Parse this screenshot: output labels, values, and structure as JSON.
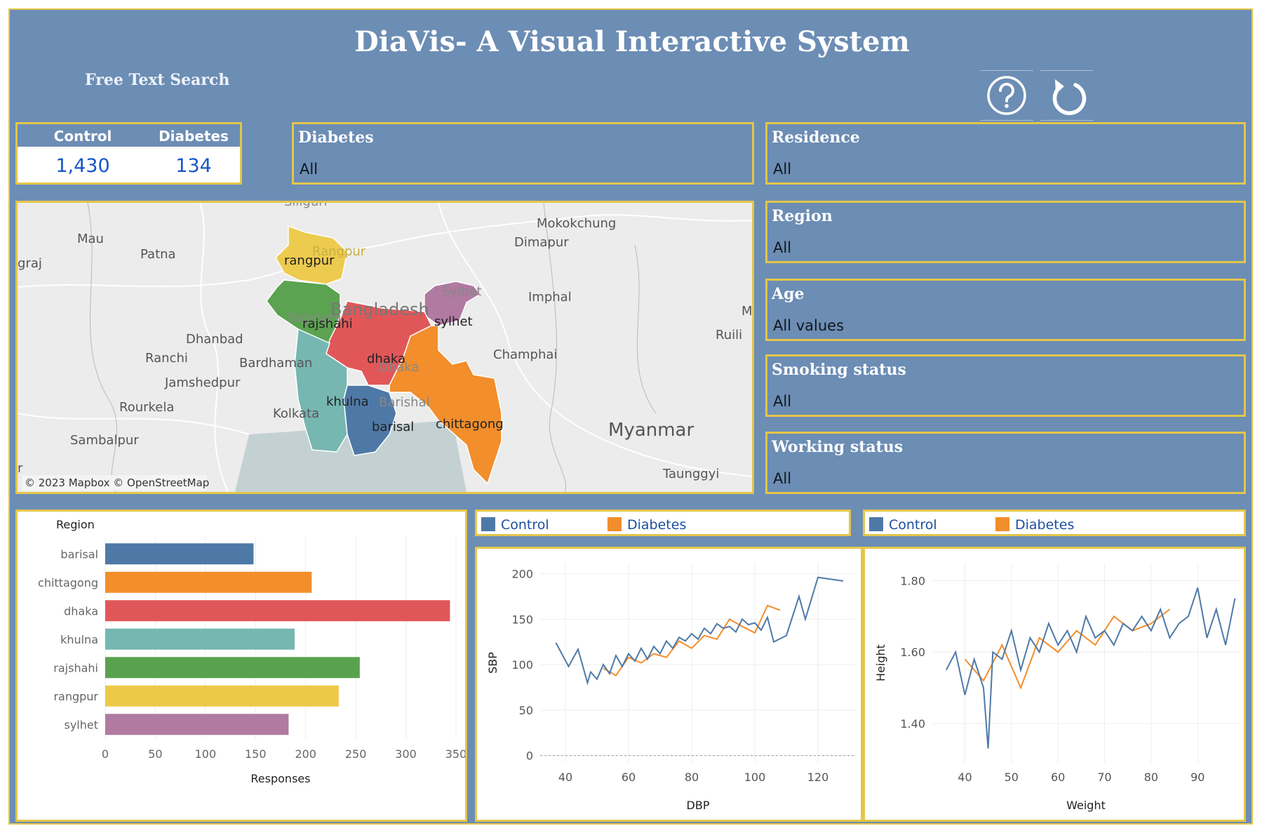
{
  "header": {
    "title": "DiaVis- A Visual Interactive System",
    "search_label": "Free Text Search",
    "help_icon": "question-circle-icon",
    "reset_icon": "revert-arrow-icon"
  },
  "counts": {
    "control_label": "Control",
    "diabetes_label": "Diabetes",
    "control_value": "1,430",
    "diabetes_value": "134"
  },
  "filters": {
    "diabetes": {
      "title": "Diabetes",
      "value": "All"
    },
    "residence": {
      "title": "Residence",
      "value": "All"
    },
    "region": {
      "title": "Region",
      "value": "All"
    },
    "age": {
      "title": "Age",
      "value": "All values"
    },
    "smoking": {
      "title": "Smoking status",
      "value": "All"
    },
    "working": {
      "title": "Working status",
      "value": "All"
    }
  },
  "map": {
    "attribution": "© 2023 Mapbox © OpenStreetMap",
    "cities": [
      "Mau",
      "Patna",
      "graj",
      "Dhanbad",
      "Ranchi",
      "Bardhaman",
      "Jamshedpur",
      "Rourkela",
      "Kolkata",
      "Sambalpur",
      "Mokokchung",
      "Dimapur",
      "Imphal",
      "Champhai",
      "Ruili",
      "Myanmar",
      "Taunggyi",
      "Bangladesh",
      "Sylhet",
      "Dhaka",
      "Rangpur",
      "Barishal",
      "Rajshahi",
      "Siliguri",
      "M",
      "r"
    ],
    "regions": [
      {
        "name": "rangpur",
        "color": "#edcb4f"
      },
      {
        "name": "rajshahi",
        "color": "#5ba350"
      },
      {
        "name": "sylhet",
        "color": "#b07aa1"
      },
      {
        "name": "dhaka",
        "color": "#e15759"
      },
      {
        "name": "khulna",
        "color": "#76b7b2"
      },
      {
        "name": "barisal",
        "color": "#4e79a7"
      },
      {
        "name": "chittagong",
        "color": "#f28e2b"
      }
    ]
  },
  "colors": {
    "control": "#4e79a7",
    "diabetes": "#f28e2b",
    "frame_bg": "#6c8db4",
    "frame_border": "#e3c64a"
  },
  "legend": {
    "control": "Control",
    "diabetes": "Diabetes"
  },
  "chart_data": [
    {
      "type": "bar",
      "orientation": "horizontal",
      "title": "",
      "category_header": "Region",
      "xlabel": "Responses",
      "xlim": [
        0,
        350
      ],
      "xticks": [
        0,
        50,
        100,
        150,
        200,
        250,
        300,
        350
      ],
      "categories": [
        "barisal",
        "chittagong",
        "dhaka",
        "khulna",
        "rajshahi",
        "rangpur",
        "sylhet"
      ],
      "values": [
        148,
        206,
        344,
        189,
        254,
        233,
        183
      ],
      "colors": [
        "#4e79a7",
        "#f28e2b",
        "#e15759",
        "#76b7b2",
        "#59a14f",
        "#edc948",
        "#b07aa1"
      ]
    },
    {
      "type": "line",
      "xlabel": "DBP",
      "ylabel": "SBP",
      "xlim": [
        32,
        132
      ],
      "ylim": [
        -8,
        212
      ],
      "xticks": [
        40,
        60,
        80,
        100,
        120
      ],
      "yticks": [
        0,
        50,
        100,
        150,
        200
      ],
      "series": [
        {
          "name": "Control",
          "x": [
            37,
            41,
            44,
            47,
            48,
            50,
            52,
            54,
            56,
            58,
            60,
            62,
            64,
            66,
            68,
            70,
            72,
            74,
            76,
            78,
            80,
            82,
            84,
            86,
            88,
            90,
            92,
            94,
            96,
            98,
            100,
            102,
            104,
            106,
            110,
            114,
            116,
            120,
            128
          ],
          "y": [
            124,
            98,
            117,
            80,
            92,
            84,
            100,
            90,
            110,
            98,
            112,
            104,
            118,
            106,
            120,
            112,
            126,
            118,
            130,
            126,
            134,
            128,
            140,
            134,
            145,
            140,
            142,
            136,
            150,
            144,
            146,
            138,
            152,
            125,
            132,
            175,
            150,
            196,
            192
          ]
        },
        {
          "name": "Diabetes",
          "x": [
            52,
            56,
            60,
            64,
            68,
            72,
            76,
            80,
            84,
            88,
            92,
            96,
            100,
            104,
            108
          ],
          "y": [
            96,
            88,
            108,
            102,
            112,
            108,
            126,
            118,
            132,
            128,
            150,
            142,
            135,
            165,
            160
          ]
        }
      ]
    },
    {
      "type": "line",
      "xlabel": "Weight",
      "ylabel": "Height",
      "xlim": [
        33,
        99
      ],
      "ylim": [
        1.29,
        1.85
      ],
      "xticks": [
        40,
        50,
        60,
        70,
        80,
        90
      ],
      "yticks": [
        "1.40",
        "1.60",
        "1.80"
      ],
      "series": [
        {
          "name": "Control",
          "x": [
            36,
            38,
            40,
            42,
            44,
            45,
            46,
            48,
            50,
            52,
            54,
            56,
            58,
            60,
            62,
            64,
            66,
            68,
            70,
            72,
            74,
            76,
            78,
            80,
            82,
            84,
            86,
            88,
            90,
            92,
            94,
            96,
            98
          ],
          "y": [
            1.55,
            1.6,
            1.48,
            1.58,
            1.5,
            1.33,
            1.6,
            1.58,
            1.66,
            1.55,
            1.64,
            1.6,
            1.68,
            1.62,
            1.66,
            1.6,
            1.7,
            1.64,
            1.66,
            1.62,
            1.68,
            1.66,
            1.7,
            1.66,
            1.72,
            1.64,
            1.68,
            1.7,
            1.78,
            1.64,
            1.72,
            1.62,
            1.75
          ]
        },
        {
          "name": "Diabetes",
          "x": [
            40,
            44,
            48,
            52,
            56,
            60,
            64,
            68,
            72,
            76,
            80,
            84
          ],
          "y": [
            1.58,
            1.52,
            1.62,
            1.5,
            1.64,
            1.6,
            1.66,
            1.62,
            1.7,
            1.66,
            1.68,
            1.72
          ]
        }
      ]
    }
  ]
}
